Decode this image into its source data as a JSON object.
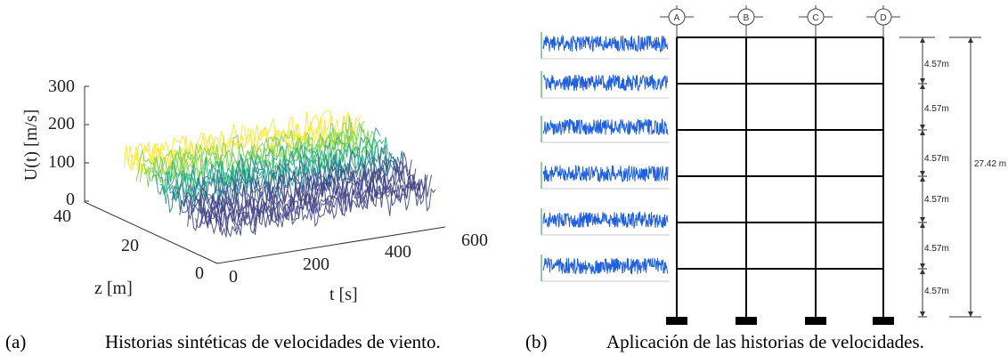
{
  "panel_a": {
    "caption_letter": "(a)",
    "caption_text": "Historias sintéticas de velocidades de viento.",
    "chart_data": {
      "type": "surface-3d",
      "zlabel": "U(t) [m/s]",
      "ylabel": "z [m]",
      "xlabel": "t [s]",
      "z_ticks": [
        "300",
        "200",
        "100",
        "0"
      ],
      "y_ticks": [
        "40",
        "20",
        "0"
      ],
      "x_ticks": [
        "0",
        "200",
        "400",
        "600"
      ],
      "xlim": [
        0,
        600
      ],
      "ylim": [
        0,
        40
      ],
      "zlim": [
        0,
        300
      ],
      "colormap": "viridis"
    }
  },
  "panel_b": {
    "caption_letter": "(b)",
    "caption_text": "Aplicación de las historias de velocidades.",
    "axes": [
      "A",
      "B",
      "C",
      "D"
    ],
    "story_heights": [
      "4.57m",
      "4.57m",
      "4.57m",
      "4.57m",
      "4.57m",
      "4.57m"
    ],
    "total_height": "27.42 m",
    "signal_count": 6,
    "signal_color": "#1f5fe0"
  }
}
